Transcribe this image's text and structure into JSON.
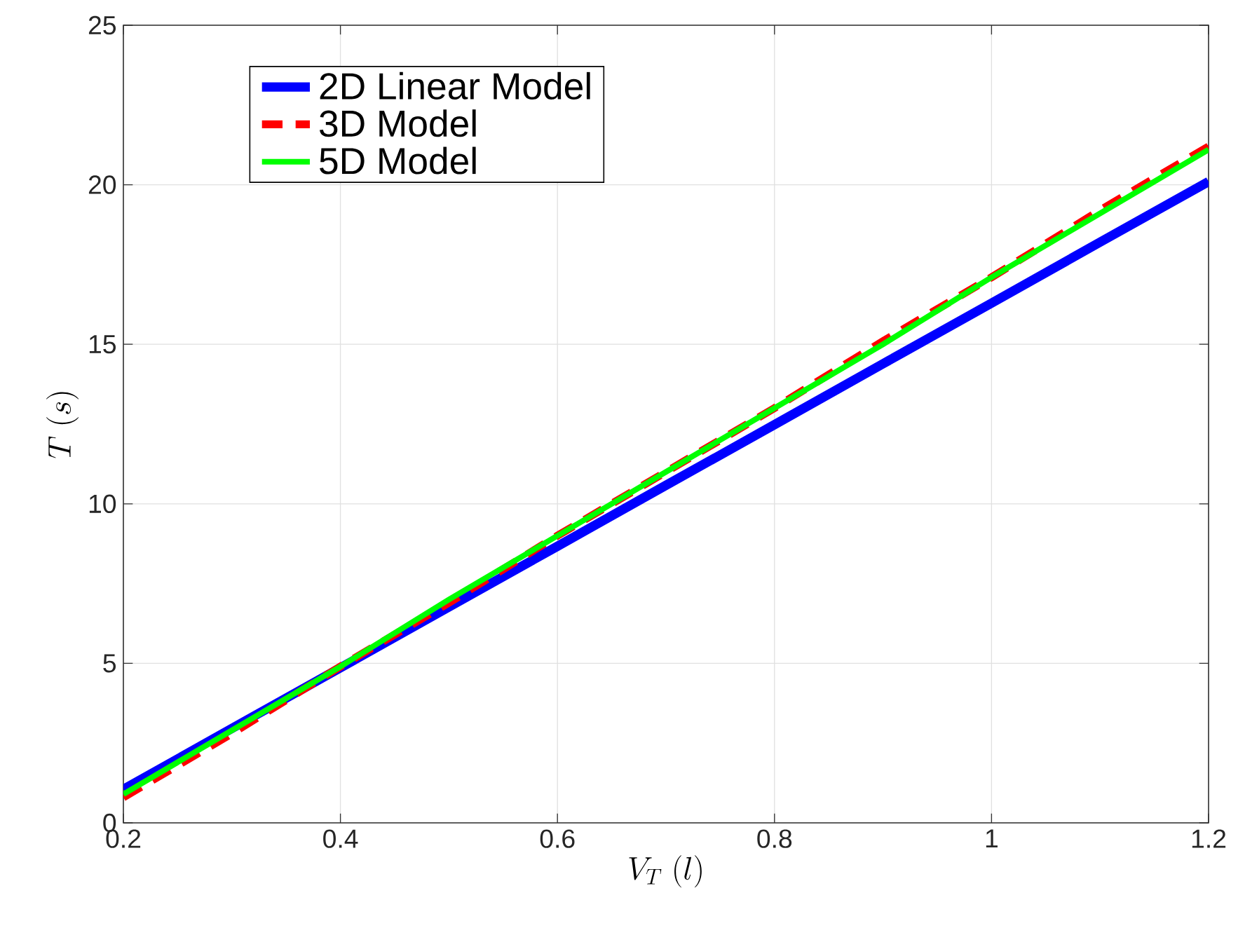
{
  "chart_data": {
    "type": "line",
    "xlabel": "V_T\\ (l)",
    "ylabel": "T\\ (s)",
    "x": [
      0.2,
      0.3,
      0.4,
      0.5,
      0.6,
      0.7,
      0.8,
      0.9,
      1.0,
      1.1,
      1.2
    ],
    "series": [
      {
        "name": "2D Linear Model",
        "color": "#0000ff",
        "line_style": "solid",
        "values": [
          1.05,
          2.96,
          4.86,
          6.77,
          8.67,
          10.58,
          12.48,
          14.39,
          16.29,
          18.2,
          20.1
        ]
      },
      {
        "name": "3D Model",
        "color": "#ff0000",
        "line_style": "dashed",
        "values": [
          0.8,
          2.8,
          4.9,
          6.9,
          9.0,
          11.0,
          13.0,
          15.1,
          17.1,
          19.2,
          21.2
        ]
      },
      {
        "name": "5D Model",
        "color": "#00ff00",
        "line_style": "solid",
        "values": [
          0.9,
          2.9,
          4.9,
          7.0,
          9.0,
          11.0,
          13.0,
          15.0,
          17.1,
          19.1,
          21.1
        ]
      }
    ],
    "xlim": [
      0.2,
      1.2
    ],
    "ylim": [
      0,
      25
    ],
    "xticks": [
      0.2,
      0.4,
      0.6,
      0.8,
      1,
      1.2
    ],
    "yticks": [
      0,
      5,
      10,
      15,
      20,
      25
    ],
    "grid": true,
    "legend": "top left",
    "marker": "none"
  }
}
